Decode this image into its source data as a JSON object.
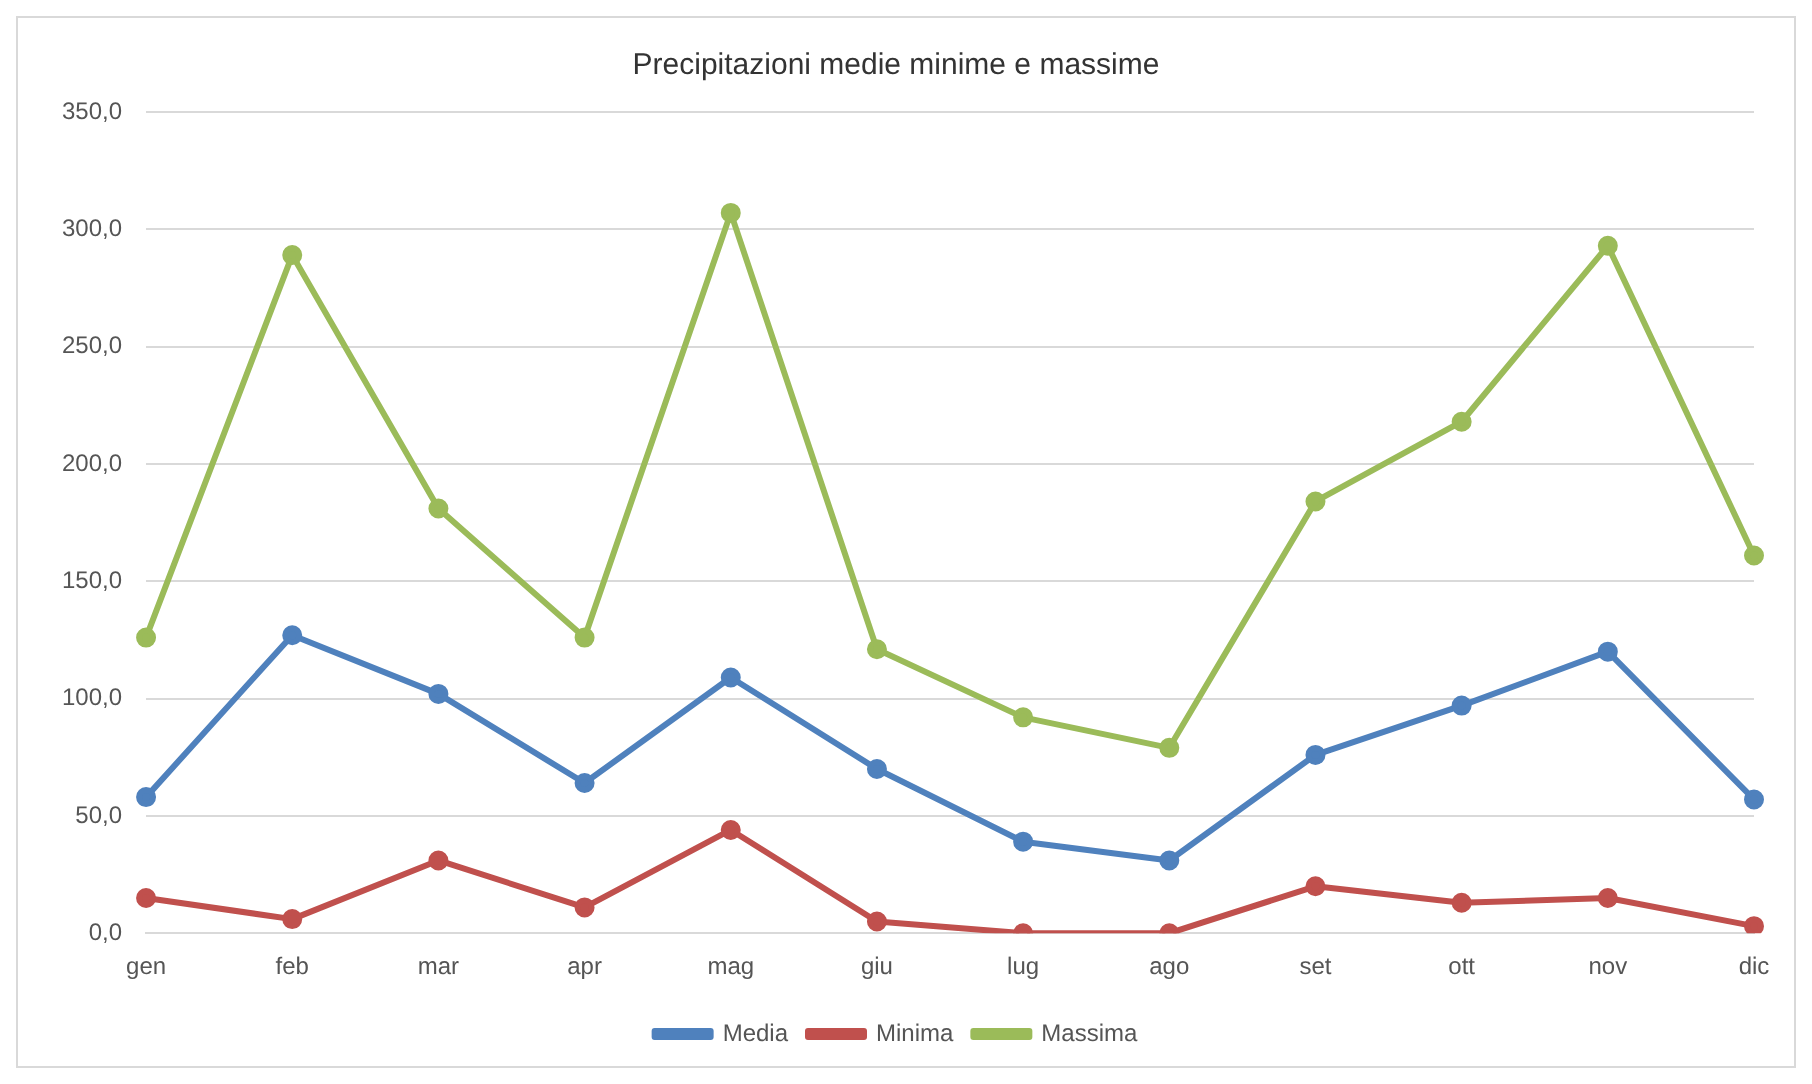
{
  "chart_data": {
    "type": "line",
    "title": "Precipitazioni medie minime e massime",
    "categories": [
      "gen",
      "feb",
      "mar",
      "apr",
      "mag",
      "giu",
      "lug",
      "ago",
      "set",
      "ott",
      "nov",
      "dic"
    ],
    "series": [
      {
        "name": "Media",
        "color": "#4f81bd",
        "values": [
          58,
          127,
          102,
          64,
          109,
          70,
          39,
          31,
          76,
          97,
          120,
          57
        ]
      },
      {
        "name": "Minima",
        "color": "#c0504d",
        "values": [
          15,
          6,
          31,
          11,
          44,
          5,
          0,
          0,
          20,
          13,
          15,
          3
        ]
      },
      {
        "name": "Massima",
        "color": "#9bbb59",
        "values": [
          126,
          289,
          181,
          126,
          307,
          121,
          92,
          79,
          184,
          218,
          293,
          161
        ]
      }
    ],
    "ylim": [
      0,
      350
    ],
    "yticks": [
      {
        "value": 0,
        "label": "0,0"
      },
      {
        "value": 50,
        "label": "50,0"
      },
      {
        "value": 100,
        "label": "100,0"
      },
      {
        "value": 150,
        "label": "150,0"
      },
      {
        "value": 200,
        "label": "200,0"
      },
      {
        "value": 250,
        "label": "250,0"
      },
      {
        "value": 300,
        "label": "300,0"
      },
      {
        "value": 350,
        "label": "350,0"
      }
    ],
    "grid": "y",
    "legend": "bottom",
    "marker": "circle",
    "line_style": "solid"
  }
}
